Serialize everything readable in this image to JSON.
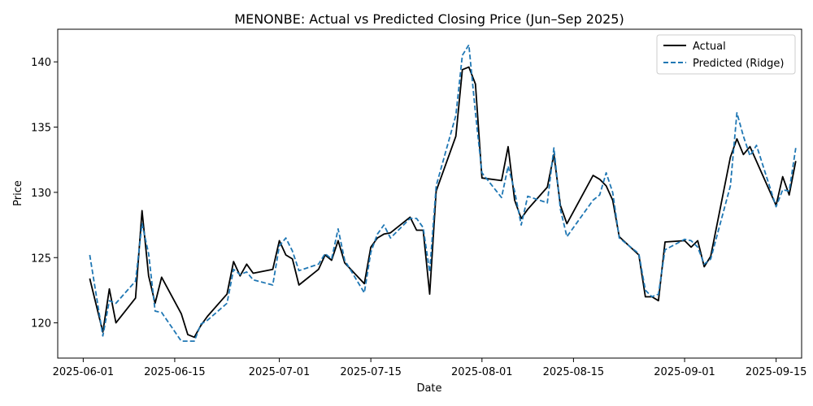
{
  "chart_data": {
    "type": "line",
    "title": "MENONBE: Actual vs Predicted Closing Price (Jun–Sep 2025)",
    "xlabel": "Date",
    "ylabel": "Price",
    "x_ticks": [
      "2025-06-01",
      "2025-06-15",
      "2025-07-01",
      "2025-07-15",
      "2025-08-01",
      "2025-08-15",
      "2025-09-01",
      "2025-09-15"
    ],
    "y_ticks": [
      120,
      125,
      130,
      135,
      140
    ],
    "ylim": [
      117.3,
      142.5
    ],
    "xlim_days": [
      -3.9,
      109.9
    ],
    "legend_position": "top-right",
    "grid": false,
    "series": [
      {
        "name": "Actual",
        "color": "#000000",
        "dash": "solid",
        "points": [
          [
            1,
            123.4
          ],
          [
            3,
            119.3
          ],
          [
            4,
            122.6
          ],
          [
            5,
            120.0
          ],
          [
            8,
            121.9
          ],
          [
            9,
            128.6
          ],
          [
            10,
            123.6
          ],
          [
            11,
            121.5
          ],
          [
            12,
            123.5
          ],
          [
            15,
            120.7
          ],
          [
            16,
            119.1
          ],
          [
            17,
            118.9
          ],
          [
            18,
            119.8
          ],
          [
            19,
            120.5
          ],
          [
            22,
            122.2
          ],
          [
            23,
            124.7
          ],
          [
            24,
            123.6
          ],
          [
            25,
            124.5
          ],
          [
            26,
            123.8
          ],
          [
            29,
            124.1
          ],
          [
            30,
            126.3
          ],
          [
            31,
            125.2
          ],
          [
            32,
            124.9
          ],
          [
            33,
            122.9
          ],
          [
            36,
            124.1
          ],
          [
            37,
            125.2
          ],
          [
            38,
            124.8
          ],
          [
            39,
            126.3
          ],
          [
            40,
            124.6
          ],
          [
            43,
            123.0
          ],
          [
            44,
            125.8
          ],
          [
            45,
            126.5
          ],
          [
            46,
            126.8
          ],
          [
            47,
            126.9
          ],
          [
            50,
            128.1
          ],
          [
            51,
            127.1
          ],
          [
            52,
            127.1
          ],
          [
            53,
            122.2
          ],
          [
            54,
            130.1
          ],
          [
            57,
            134.3
          ],
          [
            58,
            139.4
          ],
          [
            59,
            139.6
          ],
          [
            60,
            138.3
          ],
          [
            61,
            131.1
          ],
          [
            64,
            130.9
          ],
          [
            65,
            133.5
          ],
          [
            66,
            129.4
          ],
          [
            67,
            128.0
          ],
          [
            68,
            128.7
          ],
          [
            71,
            130.4
          ],
          [
            72,
            132.9
          ],
          [
            73,
            129.0
          ],
          [
            74,
            127.6
          ],
          [
            78,
            131.3
          ],
          [
            79,
            131.0
          ],
          [
            80,
            130.5
          ],
          [
            81,
            129.4
          ],
          [
            82,
            126.6
          ],
          [
            85,
            125.2
          ],
          [
            86,
            122.0
          ],
          [
            87,
            122.0
          ],
          [
            88,
            121.7
          ],
          [
            89,
            126.2
          ],
          [
            92,
            126.3
          ],
          [
            93,
            125.8
          ],
          [
            94,
            126.3
          ],
          [
            95,
            124.3
          ],
          [
            96,
            125.1
          ],
          [
            99,
            132.7
          ],
          [
            100,
            134.1
          ],
          [
            101,
            132.9
          ],
          [
            102,
            133.5
          ],
          [
            106,
            129.0
          ],
          [
            107,
            131.2
          ],
          [
            108,
            129.8
          ],
          [
            109,
            132.4
          ]
        ]
      },
      {
        "name": "Predicted (Ridge)",
        "color": "#1f77b4",
        "dash": "dashed",
        "points": [
          [
            1,
            125.2
          ],
          [
            3,
            119.0
          ],
          [
            4,
            121.7
          ],
          [
            5,
            121.5
          ],
          [
            8,
            123.2
          ],
          [
            9,
            127.6
          ],
          [
            10,
            125.3
          ],
          [
            11,
            120.9
          ],
          [
            12,
            120.8
          ],
          [
            15,
            118.6
          ],
          [
            16,
            118.6
          ],
          [
            17,
            118.6
          ],
          [
            18,
            119.9
          ],
          [
            19,
            120.2
          ],
          [
            22,
            121.5
          ],
          [
            23,
            124.1
          ],
          [
            24,
            123.7
          ],
          [
            25,
            123.9
          ],
          [
            26,
            123.3
          ],
          [
            29,
            122.9
          ],
          [
            30,
            125.9
          ],
          [
            31,
            126.5
          ],
          [
            32,
            125.5
          ],
          [
            33,
            124.0
          ],
          [
            36,
            124.5
          ],
          [
            37,
            125.3
          ],
          [
            38,
            124.9
          ],
          [
            39,
            127.2
          ],
          [
            40,
            124.8
          ],
          [
            43,
            122.3
          ],
          [
            44,
            125.4
          ],
          [
            45,
            126.8
          ],
          [
            46,
            127.5
          ],
          [
            47,
            126.5
          ],
          [
            50,
            128.0
          ],
          [
            51,
            128.0
          ],
          [
            52,
            127.3
          ],
          [
            53,
            123.9
          ],
          [
            54,
            130.5
          ],
          [
            57,
            135.9
          ],
          [
            58,
            140.5
          ],
          [
            59,
            141.3
          ],
          [
            60,
            136.1
          ],
          [
            61,
            131.5
          ],
          [
            64,
            129.6
          ],
          [
            65,
            132.0
          ],
          [
            66,
            130.1
          ],
          [
            67,
            127.5
          ],
          [
            68,
            129.7
          ],
          [
            71,
            129.2
          ],
          [
            72,
            133.4
          ],
          [
            73,
            128.7
          ],
          [
            74,
            126.6
          ],
          [
            78,
            129.4
          ],
          [
            79,
            129.8
          ],
          [
            80,
            131.5
          ],
          [
            81,
            130.0
          ],
          [
            82,
            126.5
          ],
          [
            85,
            125.3
          ],
          [
            86,
            122.5
          ],
          [
            87,
            122.0
          ],
          [
            88,
            122.2
          ],
          [
            89,
            125.6
          ],
          [
            92,
            126.4
          ],
          [
            93,
            126.3
          ],
          [
            94,
            125.8
          ],
          [
            95,
            124.5
          ],
          [
            96,
            124.9
          ],
          [
            99,
            130.5
          ],
          [
            100,
            136.1
          ],
          [
            101,
            134.3
          ],
          [
            102,
            132.8
          ],
          [
            103,
            133.6
          ],
          [
            106,
            128.9
          ],
          [
            107,
            130.2
          ],
          [
            108,
            130.1
          ],
          [
            109,
            133.4
          ]
        ]
      }
    ]
  }
}
